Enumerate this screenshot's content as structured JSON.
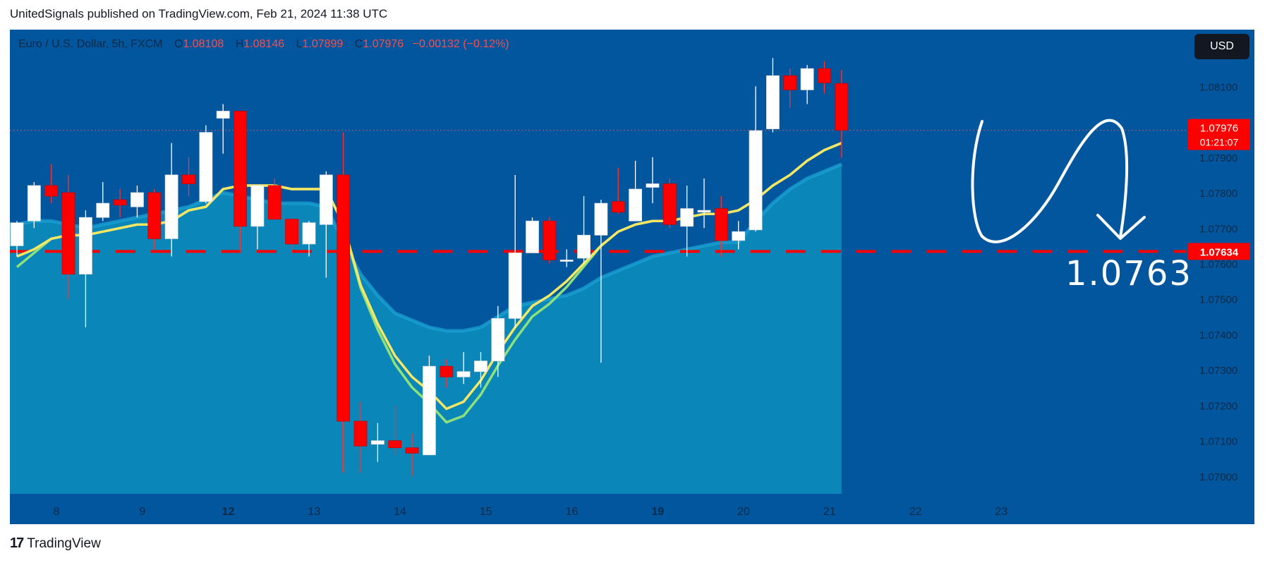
{
  "publisher_line": "UnitedSignals published on TradingView.com, Feb 21, 2024 11:38 UTC",
  "symbol_line": {
    "name": "Euro / U.S. Dollar, 5h, FXCM",
    "open_label": "O",
    "open": "1.08108",
    "high_label": "H",
    "high": "1.08146",
    "low_label": "L",
    "low": "1.07899",
    "close_label": "C",
    "close": "1.07976",
    "change": "−0.00132 (−0.12%)"
  },
  "currency_button": "USD",
  "price_badge": {
    "price": "1.07976",
    "countdown": "01:21:07"
  },
  "level_badge": "1.07634",
  "annotation_text": "1.0763",
  "brand": "TradingView",
  "colors": {
    "background": "#02569e",
    "up": "#ffffff",
    "down": "#ff0000",
    "ema_fast": "#f5e663",
    "ema_slow": "#8ee07a",
    "area": "#0a86b8",
    "level": "#ff0000"
  },
  "chart_data": {
    "type": "candlestick",
    "symbol": "Euro / U.S. Dollar, 5h, FXCM",
    "ylim": [
      1.0695,
      1.0826
    ],
    "y_ticks": [
      "1.08100",
      "1.08000",
      "1.07900",
      "1.07800",
      "1.07700",
      "1.07600",
      "1.07500",
      "1.07400",
      "1.07300",
      "1.07200",
      "1.07100",
      "1.07000"
    ],
    "x_ticks": [
      {
        "label": "8",
        "bar": 2.3,
        "bold": false
      },
      {
        "label": "9",
        "bar": 7.3,
        "bold": false
      },
      {
        "label": "12",
        "bar": 12.3,
        "bold": true
      },
      {
        "label": "13",
        "bar": 17.3,
        "bold": false
      },
      {
        "label": "14",
        "bar": 22.3,
        "bold": false
      },
      {
        "label": "15",
        "bar": 27.3,
        "bold": false
      },
      {
        "label": "16",
        "bar": 32.3,
        "bold": false
      },
      {
        "label": "19",
        "bar": 37.3,
        "bold": true
      },
      {
        "label": "20",
        "bar": 42.3,
        "bold": false
      },
      {
        "label": "21",
        "bar": 47.3,
        "bold": false
      },
      {
        "label": "22",
        "bar": 52.3,
        "bold": false
      },
      {
        "label": "23",
        "bar": 57.3,
        "bold": false
      }
    ],
    "candles": [
      {
        "o": 1.0765,
        "h": 1.0772,
        "l": 1.0762,
        "c": 1.07715
      },
      {
        "o": 1.0772,
        "h": 1.0783,
        "l": 1.077,
        "c": 1.0782
      },
      {
        "o": 1.0782,
        "h": 1.0788,
        "l": 1.0777,
        "c": 1.0779
      },
      {
        "o": 1.078,
        "h": 1.0785,
        "l": 1.075,
        "c": 1.0757
      },
      {
        "o": 1.0757,
        "h": 1.0775,
        "l": 1.0742,
        "c": 1.0773
      },
      {
        "o": 1.0773,
        "h": 1.0783,
        "l": 1.0772,
        "c": 1.0777
      },
      {
        "o": 1.0778,
        "h": 1.0781,
        "l": 1.0773,
        "c": 1.07765
      },
      {
        "o": 1.0776,
        "h": 1.0782,
        "l": 1.0773,
        "c": 1.078
      },
      {
        "o": 1.078,
        "h": 1.0781,
        "l": 1.0764,
        "c": 1.0767
      },
      {
        "o": 1.0767,
        "h": 1.0794,
        "l": 1.0762,
        "c": 1.0785
      },
      {
        "o": 1.0785,
        "h": 1.079,
        "l": 1.0779,
        "c": 1.07825
      },
      {
        "o": 1.07775,
        "h": 1.0799,
        "l": 1.0777,
        "c": 1.0797
      },
      {
        "o": 1.0801,
        "h": 1.0805,
        "l": 1.0791,
        "c": 1.0803
      },
      {
        "o": 1.0803,
        "h": 1.0803,
        "l": 1.0763,
        "c": 1.07705
      },
      {
        "o": 1.07705,
        "h": 1.0782,
        "l": 1.0764,
        "c": 1.0782
      },
      {
        "o": 1.0782,
        "h": 1.0784,
        "l": 1.0773,
        "c": 1.07725
      },
      {
        "o": 1.07725,
        "h": 1.0773,
        "l": 1.0763,
        "c": 1.07655
      },
      {
        "o": 1.07655,
        "h": 1.0772,
        "l": 1.0762,
        "c": 1.07715
      },
      {
        "o": 1.0771,
        "h": 1.0786,
        "l": 1.0756,
        "c": 1.0785
      },
      {
        "o": 1.0785,
        "h": 1.0797,
        "l": 1.0701,
        "c": 1.07155
      },
      {
        "o": 1.07155,
        "h": 1.0721,
        "l": 1.0701,
        "c": 1.07085
      },
      {
        "o": 1.0709,
        "h": 1.0715,
        "l": 1.0704,
        "c": 1.071
      },
      {
        "o": 1.071,
        "h": 1.072,
        "l": 1.0706,
        "c": 1.0708
      },
      {
        "o": 1.0708,
        "h": 1.0712,
        "l": 1.07,
        "c": 1.07065
      },
      {
        "o": 1.0706,
        "h": 1.0734,
        "l": 1.0706,
        "c": 1.0731
      },
      {
        "o": 1.0731,
        "h": 1.0733,
        "l": 1.0725,
        "c": 1.0728
      },
      {
        "o": 1.0728,
        "h": 1.0735,
        "l": 1.0726,
        "c": 1.07295
      },
      {
        "o": 1.07295,
        "h": 1.0735,
        "l": 1.0725,
        "c": 1.07325
      },
      {
        "o": 1.07325,
        "h": 1.0748,
        "l": 1.0728,
        "c": 1.07445
      },
      {
        "o": 1.07445,
        "h": 1.0785,
        "l": 1.0742,
        "c": 1.0763
      },
      {
        "o": 1.0763,
        "h": 1.0773,
        "l": 1.0763,
        "c": 1.0772
      },
      {
        "o": 1.0772,
        "h": 1.0773,
        "l": 1.076,
        "c": 1.0761
      },
      {
        "o": 1.0761,
        "h": 1.0764,
        "l": 1.0759,
        "c": 1.0761
      },
      {
        "o": 1.07615,
        "h": 1.0779,
        "l": 1.076,
        "c": 1.0768
      },
      {
        "o": 1.0768,
        "h": 1.0778,
        "l": 1.0732,
        "c": 1.0777
      },
      {
        "o": 1.07775,
        "h": 1.0787,
        "l": 1.0774,
        "c": 1.07745
      },
      {
        "o": 1.0772,
        "h": 1.0789,
        "l": 1.0772,
        "c": 1.0781
      },
      {
        "o": 1.07815,
        "h": 1.079,
        "l": 1.0777,
        "c": 1.07825
      },
      {
        "o": 1.07825,
        "h": 1.0784,
        "l": 1.077,
        "c": 1.0771
      },
      {
        "o": 1.07705,
        "h": 1.0782,
        "l": 1.0762,
        "c": 1.07755
      },
      {
        "o": 1.07745,
        "h": 1.0784,
        "l": 1.077,
        "c": 1.0775
      },
      {
        "o": 1.07755,
        "h": 1.0779,
        "l": 1.0762,
        "c": 1.07665
      },
      {
        "o": 1.07665,
        "h": 1.0772,
        "l": 1.0764,
        "c": 1.0769
      },
      {
        "o": 1.07695,
        "h": 1.081,
        "l": 1.0769,
        "c": 1.07975
      },
      {
        "o": 1.0798,
        "h": 1.0818,
        "l": 1.0797,
        "c": 1.0813
      },
      {
        "o": 1.0813,
        "h": 1.0815,
        "l": 1.0804,
        "c": 1.0809
      },
      {
        "o": 1.0809,
        "h": 1.0816,
        "l": 1.0805,
        "c": 1.0815
      },
      {
        "o": 1.0815,
        "h": 1.0817,
        "l": 1.0808,
        "c": 1.0811
      },
      {
        "o": 1.08108,
        "h": 1.08146,
        "l": 1.07899,
        "c": 1.07976
      }
    ],
    "ema_fast": [
      1.0762,
      1.0764,
      1.0767,
      1.0768,
      1.0768,
      1.0769,
      1.077,
      1.0771,
      1.0771,
      1.0772,
      1.0775,
      1.0776,
      1.0781,
      1.0782,
      1.0782,
      1.0782,
      1.0781,
      1.0781,
      1.0781,
      1.0771,
      1.0754,
      1.0743,
      1.0734,
      1.0728,
      1.0724,
      1.0719,
      1.0721,
      1.0727,
      1.0735,
      1.0742,
      1.0748,
      1.0751,
      1.0755,
      1.076,
      1.0765,
      1.0769,
      1.0771,
      1.0772,
      1.0772,
      1.0773,
      1.0774,
      1.0774,
      1.0775,
      1.0778,
      1.0782,
      1.0785,
      1.0789,
      1.0792,
      1.0794
    ],
    "ema_slow": [
      1.0759,
      1.0763,
      1.0767,
      1.0768,
      1.0768,
      1.0769,
      1.077,
      1.0771,
      1.0771,
      1.0772,
      1.0775,
      1.0776,
      1.0781,
      1.0782,
      1.0782,
      1.0782,
      1.0781,
      1.0781,
      1.0781,
      1.0771,
      1.0754,
      1.0743,
      1.0734,
      1.0728,
      1.0724,
      1.0719,
      1.0721,
      1.0727,
      1.0735,
      1.0742,
      1.0748,
      1.0751,
      1.0755,
      1.076,
      1.0765,
      1.0769,
      1.0771,
      1.0772,
      1.0772,
      1.0773,
      1.0774,
      1.0774,
      1.0775,
      1.0778,
      1.0782,
      1.0785,
      1.0789,
      1.0792,
      1.0794
    ],
    "area_upper": [
      1.0771,
      1.0772,
      1.0772,
      1.0771,
      1.077,
      1.0771,
      1.0772,
      1.0773,
      1.0774,
      1.0775,
      1.0776,
      1.0778,
      1.078,
      1.0779,
      1.0778,
      1.0777,
      1.0777,
      1.0777,
      1.0776,
      1.0766,
      1.0757,
      1.0751,
      1.0746,
      1.0744,
      1.0742,
      1.0741,
      1.0741,
      1.0742,
      1.0745,
      1.0748,
      1.0749,
      1.075,
      1.0751,
      1.0753,
      1.0756,
      1.0758,
      1.076,
      1.0762,
      1.0763,
      1.0764,
      1.0765,
      1.0766,
      1.0766,
      1.0772,
      1.0777,
      1.0781,
      1.0784,
      1.0786,
      1.0788
    ],
    "horizontal_level": 1.07634,
    "current_price": 1.07976
  }
}
